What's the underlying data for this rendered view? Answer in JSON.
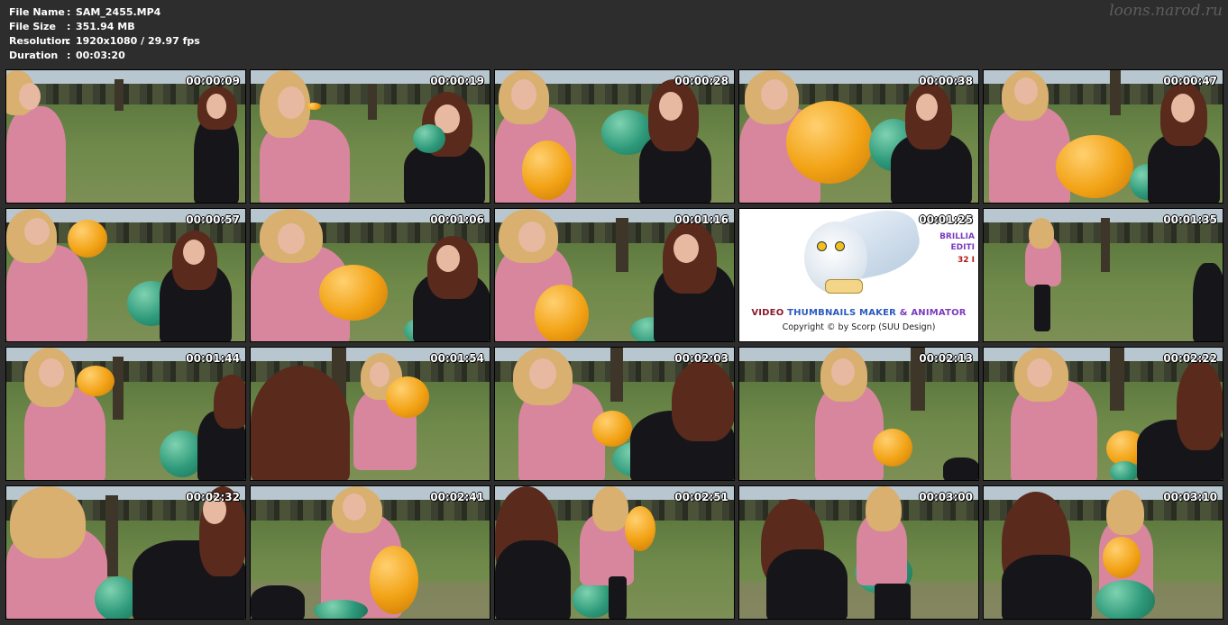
{
  "header": {
    "rows": [
      {
        "key": "File Name",
        "value": "SAM_2455.MP4"
      },
      {
        "key": "File Size",
        "value": "351.94 MB"
      },
      {
        "key": "Resolution",
        "value": "1920x1080 / 29.97 fps"
      },
      {
        "key": "Duration",
        "value": "00:03:20"
      }
    ],
    "separator": ":"
  },
  "watermark": "loons.narod.ru",
  "logo": {
    "title_part1": "VIDEO ",
    "title_part2": "THUMBNAILS MAKER ",
    "title_part3": "& ANIMATOR",
    "copyright": "Copyright © by Scorp (SUU Design)",
    "side_line1": "BRILLIA",
    "side_line2": "EDITI",
    "side_line3": "32 I"
  },
  "thumbnails": [
    {
      "time": "00:00:09"
    },
    {
      "time": "00:00:19"
    },
    {
      "time": "00:00:28"
    },
    {
      "time": "00:00:38"
    },
    {
      "time": "00:00:47"
    },
    {
      "time": "00:00:57"
    },
    {
      "time": "00:01:06"
    },
    {
      "time": "00:01:16"
    },
    {
      "time": "00:01:25"
    },
    {
      "time": "00:01:35"
    },
    {
      "time": "00:01:44"
    },
    {
      "time": "00:01:54"
    },
    {
      "time": "00:02:03"
    },
    {
      "time": "00:02:13"
    },
    {
      "time": "00:02:22"
    },
    {
      "time": "00:02:32"
    },
    {
      "time": "00:02:41"
    },
    {
      "time": "00:02:51"
    },
    {
      "time": "00:03:00"
    },
    {
      "time": "00:03:10"
    }
  ],
  "colors": {
    "background": "#2d2d2d",
    "header_text": "#ffffff",
    "pink_jacket": "#d8869e",
    "orange_balloon": "#f2a214",
    "green_balloon": "#2e9a7a"
  }
}
